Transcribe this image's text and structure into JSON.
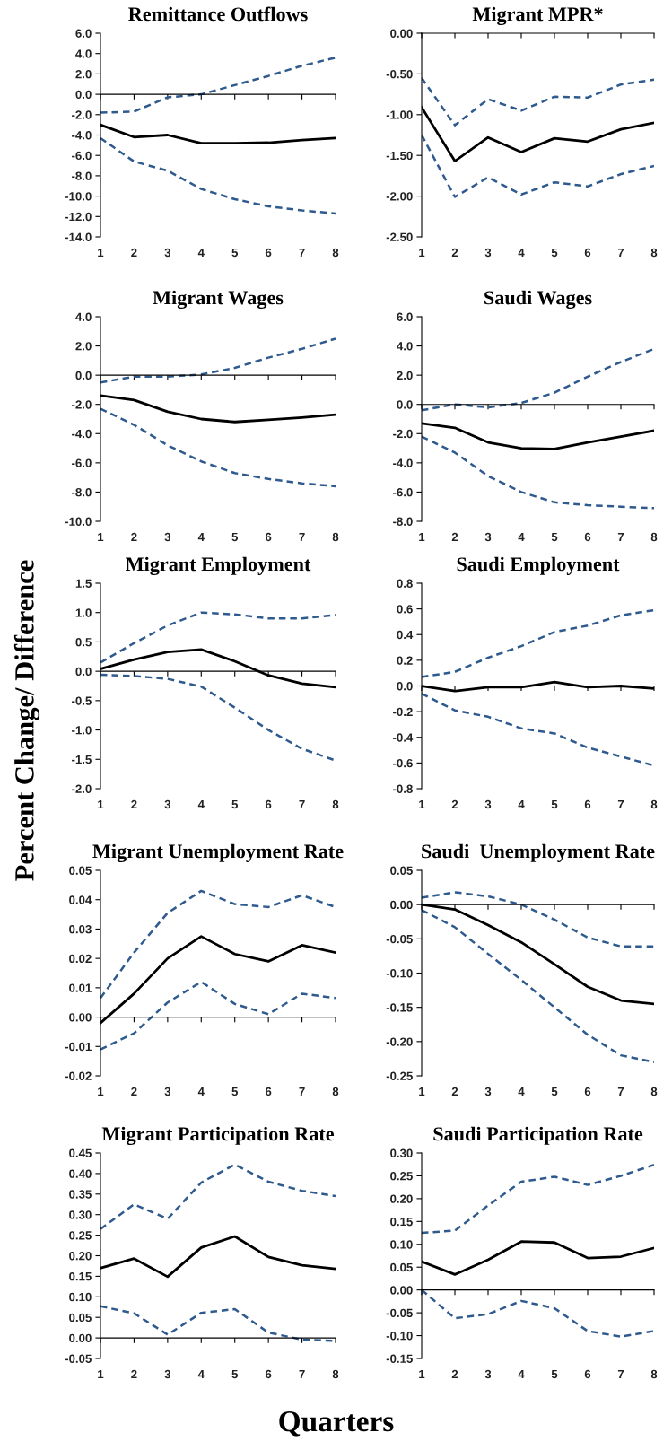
{
  "chart_data": [
    {
      "type": "line",
      "title": "Remittance Outflows",
      "categories": [
        "1",
        "2",
        "3",
        "4",
        "5",
        "6",
        "7",
        "8"
      ],
      "ylim": [
        -14,
        6
      ],
      "yticks": [
        {
          "value": -14,
          "label": "-14.0"
        },
        {
          "value": -12,
          "label": "-12.0"
        },
        {
          "value": -10,
          "label": "-10.0"
        },
        {
          "value": -8,
          "label": "-8.0"
        },
        {
          "value": -6,
          "label": "-6.0"
        },
        {
          "value": -4,
          "label": "-4.0"
        },
        {
          "value": -2,
          "label": "-2.0"
        },
        {
          "value": 0,
          "label": "0.0"
        },
        {
          "value": 2,
          "label": "2.0"
        },
        {
          "value": 4,
          "label": "4.0"
        },
        {
          "value": 6,
          "label": "6.0"
        }
      ],
      "series": [
        {
          "color": "#000000",
          "line_style": "solid",
          "values": [
            -3.0,
            -4.2,
            -4.0,
            -4.8,
            -4.8,
            -4.75,
            -4.5,
            -4.3
          ]
        },
        {
          "color": "#2e5a8e",
          "line_style": "dashed",
          "values": [
            -1.8,
            -1.7,
            -0.3,
            0.0,
            0.9,
            1.8,
            2.8,
            3.6
          ]
        },
        {
          "color": "#2e5a8e",
          "line_style": "dashed",
          "values": [
            -4.3,
            -6.6,
            -7.5,
            -9.3,
            -10.3,
            -11.0,
            -11.4,
            -11.7
          ]
        }
      ]
    },
    {
      "type": "line",
      "title": "Migrant MPR*",
      "categories": [
        "1",
        "2",
        "3",
        "4",
        "5",
        "6",
        "7",
        "8"
      ],
      "ylim": [
        -2.5,
        0
      ],
      "yticks": [
        {
          "value": -2.5,
          "label": "-2.50"
        },
        {
          "value": -2,
          "label": "-2.00"
        },
        {
          "value": -1.5,
          "label": "-1.50"
        },
        {
          "value": -1,
          "label": "-1.00"
        },
        {
          "value": -0.5,
          "label": "-0.50"
        },
        {
          "value": 0,
          "label": "0.00"
        }
      ],
      "series": [
        {
          "color": "#000000",
          "line_style": "solid",
          "values": [
            -0.91,
            -1.57,
            -1.28,
            -1.46,
            -1.29,
            -1.33,
            -1.18,
            -1.1
          ]
        },
        {
          "color": "#2e5a8e",
          "line_style": "dashed",
          "values": [
            -0.55,
            -1.13,
            -0.81,
            -0.95,
            -0.78,
            -0.79,
            -0.63,
            -0.57
          ]
        },
        {
          "color": "#2e5a8e",
          "line_style": "dashed",
          "values": [
            -1.25,
            -2.01,
            -1.77,
            -1.98,
            -1.83,
            -1.88,
            -1.73,
            -1.63
          ]
        }
      ]
    },
    {
      "type": "line",
      "title": "Migrant Wages",
      "categories": [
        "1",
        "2",
        "3",
        "4",
        "5",
        "6",
        "7",
        "8"
      ],
      "ylim": [
        -10,
        4
      ],
      "yticks": [
        {
          "value": -10,
          "label": "-10.0"
        },
        {
          "value": -8,
          "label": "-8.0"
        },
        {
          "value": -6,
          "label": "-6.0"
        },
        {
          "value": -4,
          "label": "-4.0"
        },
        {
          "value": -2,
          "label": "-2.0"
        },
        {
          "value": 0,
          "label": "0.0"
        },
        {
          "value": 2,
          "label": "2.0"
        },
        {
          "value": 4,
          "label": "4.0"
        }
      ],
      "series": [
        {
          "color": "#000000",
          "line_style": "solid",
          "values": [
            -1.4,
            -1.7,
            -2.5,
            -3.0,
            -3.2,
            -3.05,
            -2.9,
            -2.7
          ]
        },
        {
          "color": "#2e5a8e",
          "line_style": "dashed",
          "values": [
            -0.5,
            -0.1,
            -0.1,
            0.05,
            0.5,
            1.2,
            1.8,
            2.5
          ]
        },
        {
          "color": "#2e5a8e",
          "line_style": "dashed",
          "values": [
            -2.3,
            -3.4,
            -4.8,
            -5.9,
            -6.7,
            -7.1,
            -7.4,
            -7.6
          ]
        }
      ]
    },
    {
      "type": "line",
      "title": "Saudi Wages",
      "categories": [
        "1",
        "2",
        "3",
        "4",
        "5",
        "6",
        "7",
        "8"
      ],
      "ylim": [
        -8,
        6
      ],
      "yticks": [
        {
          "value": -8,
          "label": "-8.0"
        },
        {
          "value": -6,
          "label": "-6.0"
        },
        {
          "value": -4,
          "label": "-4.0"
        },
        {
          "value": -2,
          "label": "-2.0"
        },
        {
          "value": 0,
          "label": "0.0"
        },
        {
          "value": 2,
          "label": "2.0"
        },
        {
          "value": 4,
          "label": "4.0"
        },
        {
          "value": 6,
          "label": "6.0"
        }
      ],
      "series": [
        {
          "color": "#000000",
          "line_style": "solid",
          "values": [
            -1.3,
            -1.6,
            -2.6,
            -3.0,
            -3.05,
            -2.6,
            -2.2,
            -1.8
          ]
        },
        {
          "color": "#2e5a8e",
          "line_style": "dashed",
          "values": [
            -0.4,
            0.0,
            -0.2,
            0.1,
            0.8,
            1.9,
            2.9,
            3.8
          ]
        },
        {
          "color": "#2e5a8e",
          "line_style": "dashed",
          "values": [
            -2.2,
            -3.3,
            -4.9,
            -6.0,
            -6.7,
            -6.9,
            -7.0,
            -7.1
          ]
        }
      ]
    },
    {
      "type": "line",
      "title": "Migrant Employment",
      "ylabel": "Percent Change/ Difference",
      "categories": [
        "1",
        "2",
        "3",
        "4",
        "5",
        "6",
        "7",
        "8"
      ],
      "ylim": [
        -2,
        1.5
      ],
      "yticks": [
        {
          "value": -2,
          "label": "-2.0"
        },
        {
          "value": -1.5,
          "label": "-1.5"
        },
        {
          "value": -1,
          "label": "-1.0"
        },
        {
          "value": -0.5,
          "label": "-0.5"
        },
        {
          "value": 0,
          "label": "0.0"
        },
        {
          "value": 0.5,
          "label": "0.5"
        },
        {
          "value": 1,
          "label": "1.0"
        },
        {
          "value": 1.5,
          "label": "1.5"
        }
      ],
      "series": [
        {
          "color": "#000000",
          "line_style": "solid",
          "values": [
            0.04,
            0.2,
            0.33,
            0.37,
            0.17,
            -0.07,
            -0.21,
            -0.27
          ]
        },
        {
          "color": "#2e5a8e",
          "line_style": "dashed",
          "values": [
            0.15,
            0.48,
            0.78,
            1.0,
            0.97,
            0.9,
            0.9,
            0.96
          ]
        },
        {
          "color": "#2e5a8e",
          "line_style": "dashed",
          "values": [
            -0.06,
            -0.08,
            -0.13,
            -0.26,
            -0.62,
            -1.0,
            -1.32,
            -1.52
          ]
        }
      ]
    },
    {
      "type": "line",
      "title": "Saudi Employment",
      "categories": [
        "1",
        "2",
        "3",
        "4",
        "5",
        "6",
        "7",
        "8"
      ],
      "ylim": [
        -0.8,
        0.8
      ],
      "yticks": [
        {
          "value": -0.8,
          "label": "-0.8"
        },
        {
          "value": -0.6,
          "label": "-0.6"
        },
        {
          "value": -0.4,
          "label": "-0.4"
        },
        {
          "value": -0.2,
          "label": "-0.2"
        },
        {
          "value": 0,
          "label": "0.0"
        },
        {
          "value": 0.2,
          "label": "0.2"
        },
        {
          "value": 0.4,
          "label": "0.4"
        },
        {
          "value": 0.6,
          "label": "0.6"
        },
        {
          "value": 0.8,
          "label": "0.8"
        }
      ],
      "series": [
        {
          "color": "#000000",
          "line_style": "solid",
          "values": [
            0.0,
            -0.04,
            -0.01,
            -0.01,
            0.03,
            -0.01,
            0.0,
            -0.02
          ]
        },
        {
          "color": "#2e5a8e",
          "line_style": "dashed",
          "values": [
            0.07,
            0.11,
            0.22,
            0.31,
            0.42,
            0.47,
            0.55,
            0.59
          ]
        },
        {
          "color": "#2e5a8e",
          "line_style": "dashed",
          "values": [
            -0.06,
            -0.19,
            -0.24,
            -0.33,
            -0.37,
            -0.48,
            -0.55,
            -0.62
          ]
        }
      ]
    },
    {
      "type": "line",
      "title": "Migrant Unemployment Rate",
      "categories": [
        "1",
        "2",
        "3",
        "4",
        "5",
        "6",
        "7",
        "8"
      ],
      "ylim": [
        -0.02,
        0.05
      ],
      "yticks": [
        {
          "value": -0.02,
          "label": "-0.02"
        },
        {
          "value": -0.01,
          "label": "-0.01"
        },
        {
          "value": 0,
          "label": "0.00"
        },
        {
          "value": 0.01,
          "label": "0.01"
        },
        {
          "value": 0.02,
          "label": "0.02"
        },
        {
          "value": 0.03,
          "label": "0.03"
        },
        {
          "value": 0.04,
          "label": "0.04"
        },
        {
          "value": 0.05,
          "label": "0.05"
        }
      ],
      "series": [
        {
          "color": "#000000",
          "line_style": "solid",
          "values": [
            -0.002,
            0.008,
            0.02,
            0.0275,
            0.0215,
            0.019,
            0.0245,
            0.022
          ]
        },
        {
          "color": "#2e5a8e",
          "line_style": "dashed",
          "values": [
            0.0065,
            0.022,
            0.0355,
            0.043,
            0.0385,
            0.0375,
            0.0415,
            0.0375
          ]
        },
        {
          "color": "#2e5a8e",
          "line_style": "dashed",
          "values": [
            -0.011,
            -0.0055,
            0.005,
            0.012,
            0.0045,
            0.001,
            0.008,
            0.0065
          ]
        }
      ]
    },
    {
      "type": "line",
      "title": "Saudi  Unemployment Rate",
      "categories": [
        "1",
        "2",
        "3",
        "4",
        "5",
        "6",
        "7",
        "8"
      ],
      "ylim": [
        -0.25,
        0.05
      ],
      "yticks": [
        {
          "value": -0.25,
          "label": "-0.25"
        },
        {
          "value": -0.2,
          "label": "-0.20"
        },
        {
          "value": -0.15,
          "label": "-0.15"
        },
        {
          "value": -0.1,
          "label": "-0.10"
        },
        {
          "value": -0.05,
          "label": "-0.05"
        },
        {
          "value": 0,
          "label": "0.00"
        },
        {
          "value": 0.05,
          "label": "0.05"
        }
      ],
      "series": [
        {
          "color": "#000000",
          "line_style": "solid",
          "values": [
            0.0,
            -0.007,
            -0.03,
            -0.055,
            -0.087,
            -0.12,
            -0.14,
            -0.145
          ]
        },
        {
          "color": "#2e5a8e",
          "line_style": "dashed",
          "values": [
            0.01,
            0.018,
            0.012,
            0.0,
            -0.022,
            -0.048,
            -0.061,
            -0.061
          ]
        },
        {
          "color": "#2e5a8e",
          "line_style": "dashed",
          "values": [
            -0.008,
            -0.033,
            -0.072,
            -0.11,
            -0.15,
            -0.19,
            -0.22,
            -0.23
          ]
        }
      ]
    },
    {
      "type": "line",
      "title": "Migrant Participation Rate",
      "categories": [
        "1",
        "2",
        "3",
        "4",
        "5",
        "6",
        "7",
        "8"
      ],
      "ylim": [
        -0.05,
        0.45
      ],
      "yticks": [
        {
          "value": -0.05,
          "label": "-0.05"
        },
        {
          "value": 0,
          "label": "0.00"
        },
        {
          "value": 0.05,
          "label": "0.05"
        },
        {
          "value": 0.1,
          "label": "0.10"
        },
        {
          "value": 0.15,
          "label": "0.15"
        },
        {
          "value": 0.2,
          "label": "0.20"
        },
        {
          "value": 0.25,
          "label": "0.25"
        },
        {
          "value": 0.3,
          "label": "0.30"
        },
        {
          "value": 0.35,
          "label": "0.35"
        },
        {
          "value": 0.4,
          "label": "0.40"
        },
        {
          "value": 0.45,
          "label": "0.45"
        }
      ],
      "series": [
        {
          "color": "#000000",
          "line_style": "solid",
          "values": [
            0.17,
            0.193,
            0.149,
            0.22,
            0.247,
            0.197,
            0.177,
            0.168
          ]
        },
        {
          "color": "#2e5a8e",
          "line_style": "dashed",
          "values": [
            0.265,
            0.325,
            0.29,
            0.378,
            0.422,
            0.38,
            0.358,
            0.345
          ]
        },
        {
          "color": "#2e5a8e",
          "line_style": "dashed",
          "values": [
            0.077,
            0.06,
            0.008,
            0.061,
            0.07,
            0.013,
            -0.004,
            -0.007
          ]
        }
      ]
    },
    {
      "type": "line",
      "title": "Saudi Participation Rate",
      "xlabel": "Quarters",
      "categories": [
        "1",
        "2",
        "3",
        "4",
        "5",
        "6",
        "7",
        "8"
      ],
      "ylim": [
        -0.15,
        0.3
      ],
      "yticks": [
        {
          "value": -0.15,
          "label": "-0.15"
        },
        {
          "value": -0.1,
          "label": "-0.10"
        },
        {
          "value": -0.05,
          "label": "-0.05"
        },
        {
          "value": 0,
          "label": "0.00"
        },
        {
          "value": 0.05,
          "label": "0.05"
        },
        {
          "value": 0.1,
          "label": "0.10"
        },
        {
          "value": 0.15,
          "label": "0.15"
        },
        {
          "value": 0.2,
          "label": "0.20"
        },
        {
          "value": 0.25,
          "label": "0.25"
        },
        {
          "value": 0.3,
          "label": "0.30"
        }
      ],
      "series": [
        {
          "color": "#000000",
          "line_style": "solid",
          "values": [
            0.062,
            0.034,
            0.066,
            0.106,
            0.104,
            0.07,
            0.073,
            0.092
          ]
        },
        {
          "color": "#2e5a8e",
          "line_style": "dashed",
          "values": [
            0.125,
            0.13,
            0.185,
            0.237,
            0.248,
            0.23,
            0.25,
            0.274
          ]
        },
        {
          "color": "#2e5a8e",
          "line_style": "dashed",
          "values": [
            0.0,
            -0.062,
            -0.053,
            -0.024,
            -0.04,
            -0.09,
            -0.102,
            -0.09
          ]
        }
      ]
    }
  ]
}
